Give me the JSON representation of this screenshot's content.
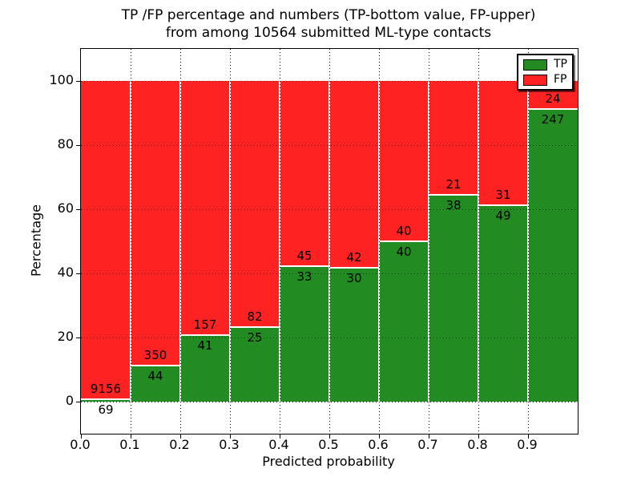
{
  "title": {
    "line1": "TP /FP percentage and numbers (TP-bottom value, FP-upper)",
    "line2": "from among 10564 submitted ML-type contacts"
  },
  "axes": {
    "xlabel": "Predicted probability",
    "ylabel": "Percentage",
    "xlim": [
      0.0,
      1.0
    ],
    "ylim": [
      -10,
      110
    ],
    "xticks": [
      "0.0",
      "0.1",
      "0.2",
      "0.3",
      "0.4",
      "0.5",
      "0.6",
      "0.7",
      "0.8",
      "0.9"
    ],
    "yticks": [
      "0",
      "20",
      "40",
      "60",
      "80",
      "100"
    ],
    "grid": "dotted"
  },
  "legend": {
    "position": "upper-right",
    "items": [
      {
        "label": "TP",
        "color": "#228b22"
      },
      {
        "label": "FP",
        "color": "#fe2222"
      }
    ]
  },
  "chart_data": {
    "type": "bar",
    "stacked": true,
    "total_shown_in_title": 10564,
    "bin_edges": [
      0.0,
      0.1,
      0.2,
      0.3,
      0.4,
      0.5,
      0.6,
      0.7,
      0.8,
      0.9,
      1.0
    ],
    "series": [
      {
        "name": "TP",
        "color": "#228b22",
        "counts": [
          69,
          44,
          41,
          25,
          33,
          30,
          40,
          38,
          49,
          247
        ],
        "percent": [
          0.75,
          11.17,
          20.71,
          23.36,
          42.31,
          41.67,
          50.0,
          64.41,
          61.25,
          91.14
        ]
      },
      {
        "name": "FP",
        "color": "#fe2222",
        "counts": [
          9156,
          350,
          157,
          82,
          45,
          42,
          40,
          21,
          31,
          24
        ],
        "percent": [
          99.25,
          88.83,
          79.29,
          76.64,
          57.69,
          58.33,
          50.0,
          35.59,
          38.75,
          8.86
        ]
      }
    ],
    "title": "TP /FP percentage and numbers (TP-bottom value, FP-upper) from among 10564 submitted ML-type contacts",
    "xlabel": "Predicted probability",
    "ylabel": "Percentage",
    "ylim": [
      -10,
      110
    ]
  },
  "colors": {
    "tp": "#228b22",
    "fp": "#fe2222",
    "grid": "#000000",
    "axis": "#000000",
    "background": "#ffffff",
    "separator": "#ffffff"
  }
}
